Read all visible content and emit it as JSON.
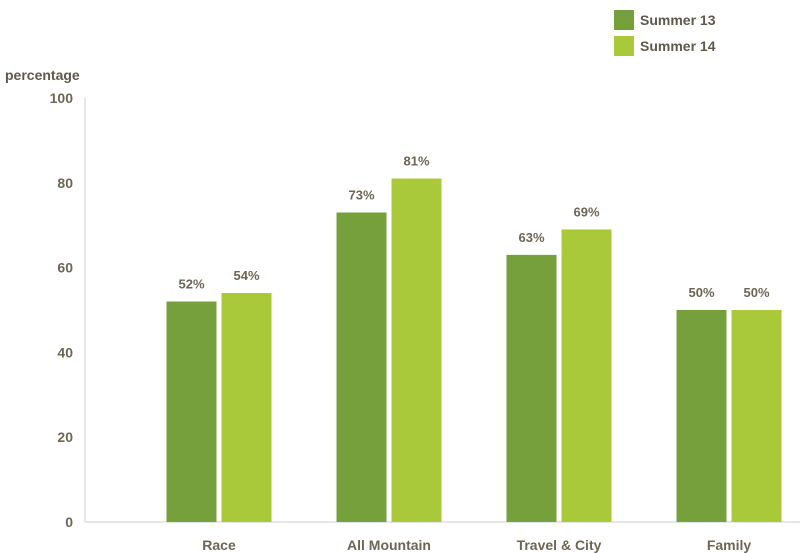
{
  "chart_data": {
    "type": "bar",
    "ylabel": "percentage",
    "ylim": [
      0,
      100
    ],
    "yticks": [
      0,
      20,
      40,
      60,
      80,
      100
    ],
    "categories": [
      "Race",
      "All Mountain",
      "Travel & City",
      "Family"
    ],
    "series": [
      {
        "name": "Summer 13",
        "color": "#76a03c",
        "values": [
          52,
          73,
          63,
          50
        ],
        "labels": [
          "52%",
          "73%",
          "63%",
          "50%"
        ]
      },
      {
        "name": "Summer 14",
        "color": "#a9c93a",
        "values": [
          54,
          81,
          69,
          50
        ],
        "labels": [
          "54%",
          "81%",
          "69%",
          "50%"
        ]
      }
    ],
    "legend_position": "top-right",
    "grid": false
  }
}
